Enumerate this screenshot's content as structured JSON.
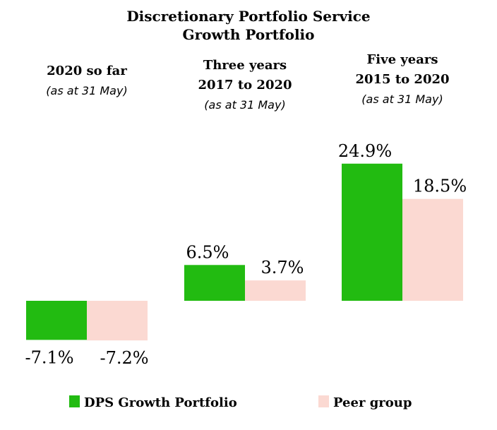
{
  "title": [
    "Discretionary Portfolio Service",
    "Growth Portfolio"
  ],
  "colors": {
    "dps": "#22bb11",
    "peer": "#fbd9d2"
  },
  "chart_data": {
    "type": "bar",
    "categories": [
      [
        "2020 so far",
        "(as at 31 May)"
      ],
      [
        "Three years",
        "2017 to 2020",
        "(as at 31 May)"
      ],
      [
        "Five years",
        "2015 to 2020",
        "(as at 31 May)"
      ]
    ],
    "series": [
      {
        "name": "DPS Growth Portfolio",
        "values": [
          -7.1,
          6.5,
          24.9
        ],
        "labels": [
          "-7.1%",
          "6.5%",
          "24.9%"
        ]
      },
      {
        "name": "Peer group",
        "values": [
          -7.2,
          3.7,
          18.5
        ],
        "labels": [
          "-7.2%",
          "3.7%",
          "18.5%"
        ]
      }
    ],
    "unit": "%",
    "grid": false,
    "legend": "bottom"
  }
}
